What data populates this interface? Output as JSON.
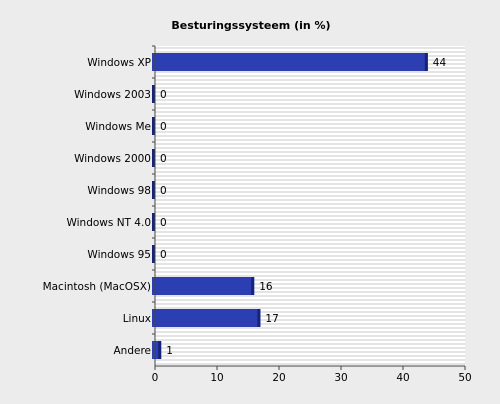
{
  "chart_data": {
    "type": "bar",
    "orientation": "horizontal",
    "title": "Besturingssysteem (in %)",
    "xlabel": "",
    "ylabel": "",
    "categories": [
      "Windows XP",
      "Windows 2003",
      "Windows Me",
      "Windows 2000",
      "Windows 98",
      "Windows NT 4.0",
      "Windows 95",
      "Macintosh (MacOSX)",
      "Linux",
      "Andere"
    ],
    "values": [
      44,
      0,
      0,
      0,
      0,
      0,
      0,
      16,
      17,
      1
    ],
    "value_labels": [
      "44",
      "0",
      "0",
      "0",
      "0",
      "0",
      "0",
      "16",
      "17",
      "1"
    ],
    "xlim": [
      0,
      50
    ],
    "xticks": [
      0,
      10,
      20,
      30,
      40,
      50
    ],
    "grid": "horizontal-stripes",
    "legend": "none",
    "colors": {
      "bar": "#2b3fb3",
      "bar_dark": "#16237a",
      "background": "#ececec",
      "plot_bg": "#ffffff",
      "grid": "#c8c8c8"
    }
  }
}
